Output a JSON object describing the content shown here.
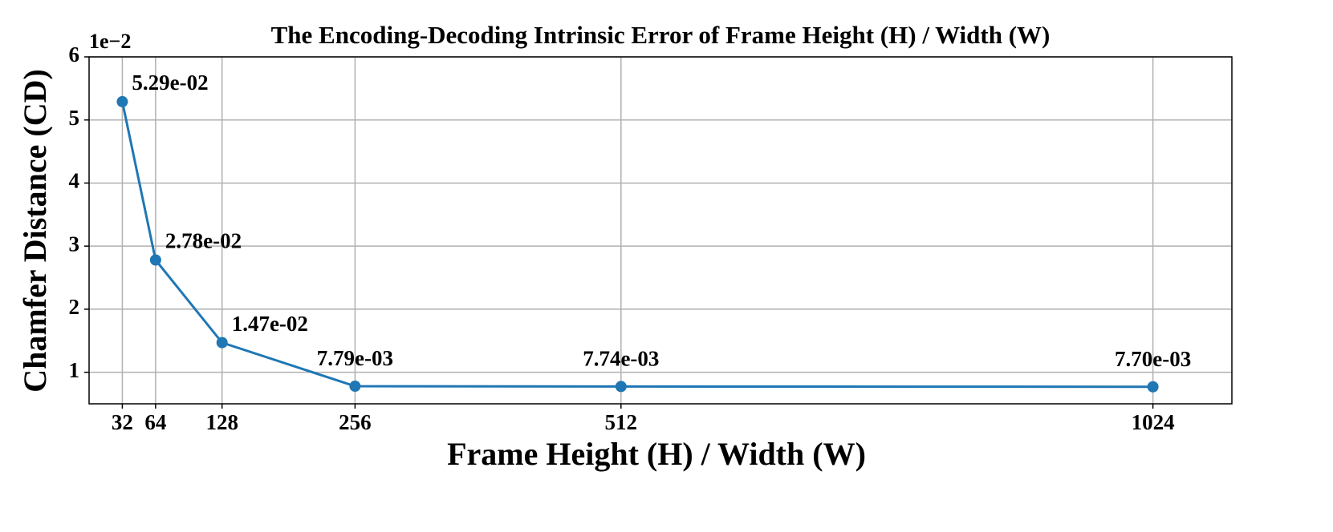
{
  "chart_data": {
    "type": "line",
    "title": "The Encoding-Decoding Intrinsic Error of Frame Height (H) / Width (W)",
    "x_label": "Frame Height (H) / Width (W)",
    "y_label": "Chamfer Distance (CD)",
    "y_offset_label": "1e−2",
    "x": [
      32,
      64,
      128,
      256,
      512,
      1024
    ],
    "values": [
      0.0529,
      0.0278,
      0.0147,
      0.00779,
      0.00774,
      0.0077
    ],
    "value_labels": [
      "5.29e-02",
      "2.78e-02",
      "1.47e-02",
      "7.79e-03",
      "7.74e-03",
      "7.70e-03"
    ],
    "color": "#1f77b4",
    "xlim": [
      0,
      1100
    ],
    "xticks": [
      32,
      64,
      128,
      256,
      512,
      1024
    ],
    "ylim": [
      0.005,
      0.06
    ],
    "yticks": [
      {
        "value": 0.01,
        "label": "1"
      },
      {
        "value": 0.02,
        "label": "2"
      },
      {
        "value": 0.03,
        "label": "3"
      },
      {
        "value": 0.04,
        "label": "4"
      },
      {
        "value": 0.05,
        "label": "5"
      },
      {
        "value": 0.06,
        "label": "6"
      }
    ],
    "grid": true
  }
}
